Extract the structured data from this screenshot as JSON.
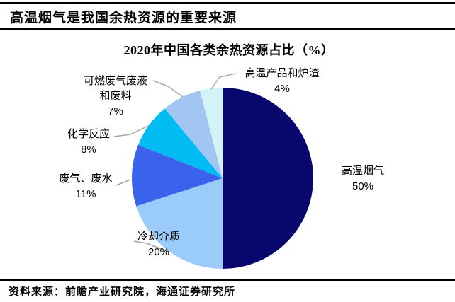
{
  "header": {
    "title": "高温烟气是我国余热资源的重要来源"
  },
  "chart_data": {
    "type": "pie",
    "title": "2020年中国各类余热资源占比（%）",
    "unit": "%",
    "start_angle_deg": 0,
    "direction": "clockwise",
    "leader_line_color": "#A6A6A6",
    "slices": [
      {
        "label": "高温烟气",
        "value": 50,
        "color": "#07076E"
      },
      {
        "label": "冷却介质",
        "value": 20,
        "color": "#9BCBF8"
      },
      {
        "label": "废气、废水",
        "value": 11,
        "color": "#3A62EC"
      },
      {
        "label": "化学反应",
        "value": 8,
        "color": "#00BCF2"
      },
      {
        "label": "可燃废气废液\n和废料",
        "value": 7,
        "color": "#A2C5F2"
      },
      {
        "label": "高温产品和炉渣",
        "value": 4,
        "color": "#D4F3F8"
      }
    ]
  },
  "footer": {
    "source": "资料来源：前瞻产业研究院，海通证券研究所"
  }
}
